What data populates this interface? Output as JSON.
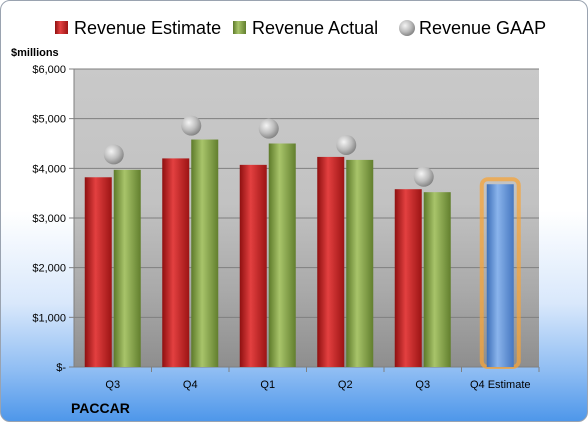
{
  "chart_data": {
    "type": "bar",
    "title": "",
    "ylabel": "$millions",
    "xlabel": "",
    "company": "PACCAR",
    "categories": [
      "Q3",
      "Q4",
      "Q1",
      "Q2",
      "Q3",
      "Q4 Estimate"
    ],
    "ylim": [
      0,
      6000
    ],
    "yticks": [
      0,
      1000,
      2000,
      3000,
      4000,
      5000,
      6000
    ],
    "ytick_labels": [
      "$-",
      "$1,000",
      "$2,000",
      "$3,000",
      "$4,000",
      "$5,000",
      "$6,000"
    ],
    "grid": true,
    "legend_position": "top",
    "series": [
      {
        "name": "Revenue Estimate",
        "kind": "bar",
        "color": "#cc2222",
        "values": [
          3820,
          4200,
          4070,
          4230,
          3580,
          null
        ]
      },
      {
        "name": "Revenue Actual",
        "kind": "bar",
        "color": "#8aaa4a",
        "values": [
          3970,
          4580,
          4500,
          4170,
          3520,
          null
        ]
      },
      {
        "name": "Revenue GAAP",
        "kind": "marker",
        "color": "#b8b8b8",
        "values": [
          4280,
          4860,
          4800,
          4470,
          3830,
          null
        ]
      },
      {
        "name": "",
        "kind": "bar",
        "color": "#5b8fd6",
        "highlight": true,
        "values": [
          null,
          null,
          null,
          null,
          null,
          3680
        ]
      }
    ]
  }
}
